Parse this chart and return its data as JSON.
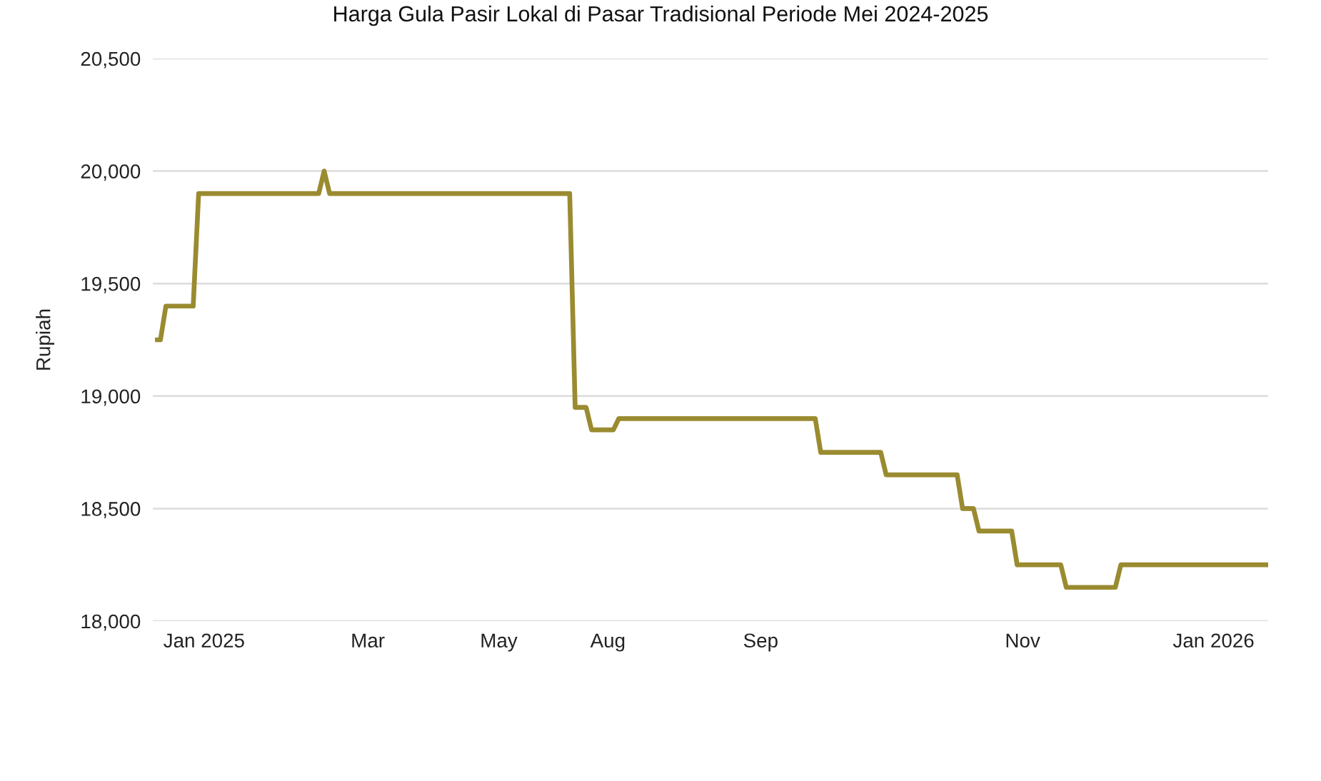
{
  "chart_data": {
    "type": "line",
    "title": "Harga Gula Pasir Lokal di Pasar Tradisional Periode Mei 2024-2025",
    "ylabel": "Rupiah",
    "categories": [
      null,
      null,
      null,
      null,
      null,
      null,
      null,
      null,
      null,
      "Jan 2025",
      null,
      null,
      null,
      null,
      null,
      null,
      null,
      null,
      null,
      null,
      null,
      null,
      null,
      null,
      null,
      null,
      null,
      null,
      null,
      null,
      null,
      null,
      null,
      null,
      null,
      null,
      null,
      null,
      null,
      "Mar",
      null,
      null,
      null,
      null,
      null,
      null,
      null,
      null,
      null,
      null,
      null,
      null,
      null,
      null,
      null,
      null,
      null,
      null,
      null,
      null,
      null,
      null,
      null,
      "May",
      null,
      null,
      null,
      null,
      null,
      null,
      null,
      null,
      null,
      null,
      null,
      null,
      null,
      null,
      null,
      null,
      null,
      null,
      null,
      "Aug",
      null,
      null,
      null,
      null,
      null,
      null,
      null,
      null,
      null,
      null,
      null,
      null,
      null,
      null,
      null,
      null,
      null,
      null,
      null,
      null,
      null,
      null,
      null,
      null,
      null,
      null,
      null,
      "Sep",
      null,
      null,
      null,
      null,
      null,
      null,
      null,
      null,
      null,
      null,
      null,
      null,
      null,
      null,
      null,
      null,
      null,
      null,
      null,
      null,
      null,
      null,
      null,
      null,
      null,
      null,
      null,
      null,
      null,
      null,
      null,
      null,
      null,
      null,
      null,
      null,
      null,
      null,
      null,
      null,
      null,
      null,
      null,
      null,
      null,
      null,
      null,
      "Nov",
      null,
      null,
      null,
      null,
      null,
      null,
      null,
      null,
      null,
      null,
      null,
      null,
      null,
      null,
      null,
      null,
      null,
      null,
      null,
      null,
      null,
      null,
      null,
      null,
      null,
      null,
      null,
      null,
      null,
      null,
      null,
      null,
      null,
      null,
      "Jan 2026",
      null,
      null,
      null,
      null,
      null,
      null,
      null,
      null,
      null,
      null
    ],
    "series": [
      {
        "color": "#9a8b30",
        "values": [
          19250,
          19250,
          19400,
          19400,
          19400,
          19400,
          19400,
          19400,
          19900,
          19900,
          19900,
          19900,
          19900,
          19900,
          19900,
          19900,
          19900,
          19900,
          19900,
          19900,
          19900,
          19900,
          19900,
          19900,
          19900,
          19900,
          19900,
          19900,
          19900,
          19900,
          19900,
          20000,
          19900,
          19900,
          19900,
          19900,
          19900,
          19900,
          19900,
          19900,
          19900,
          19900,
          19900,
          19900,
          19900,
          19900,
          19900,
          19900,
          19900,
          19900,
          19900,
          19900,
          19900,
          19900,
          19900,
          19900,
          19900,
          19900,
          19900,
          19900,
          19900,
          19900,
          19900,
          19900,
          19900,
          19900,
          19900,
          19900,
          19900,
          19900,
          19900,
          19900,
          19900,
          19900,
          19900,
          19900,
          19900,
          18950,
          18950,
          18950,
          18850,
          18850,
          18850,
          18850,
          18850,
          18900,
          18900,
          18900,
          18900,
          18900,
          18900,
          18900,
          18900,
          18900,
          18900,
          18900,
          18900,
          18900,
          18900,
          18900,
          18900,
          18900,
          18900,
          18900,
          18900,
          18900,
          18900,
          18900,
          18900,
          18900,
          18900,
          18900,
          18900,
          18900,
          18900,
          18900,
          18900,
          18900,
          18900,
          18900,
          18900,
          18900,
          18750,
          18750,
          18750,
          18750,
          18750,
          18750,
          18750,
          18750,
          18750,
          18750,
          18750,
          18750,
          18650,
          18650,
          18650,
          18650,
          18650,
          18650,
          18650,
          18650,
          18650,
          18650,
          18650,
          18650,
          18650,
          18650,
          18500,
          18500,
          18500,
          18400,
          18400,
          18400,
          18400,
          18400,
          18400,
          18400,
          18250,
          18250,
          18250,
          18250,
          18250,
          18250,
          18250,
          18250,
          18250,
          18150,
          18150,
          18150,
          18150,
          18150,
          18150,
          18150,
          18150,
          18150,
          18150,
          18250,
          18250,
          18250,
          18250,
          18250,
          18250,
          18250,
          18250,
          18250,
          18250,
          18250,
          18250,
          18250,
          18250,
          18250,
          18250,
          18250,
          18250,
          18250,
          18250,
          18250,
          18250,
          18250,
          18250,
          18250,
          18250,
          18250,
          18250
        ]
      }
    ],
    "ylim": [
      18000,
      20500
    ],
    "yticks": [
      {
        "value": 18000,
        "label": "18,000"
      },
      {
        "value": 18500,
        "label": "18,500"
      },
      {
        "value": 19000,
        "label": "19,000"
      },
      {
        "value": 19500,
        "label": "19,500"
      },
      {
        "value": 20000,
        "label": "20,000"
      },
      {
        "value": 20500,
        "label": "20,500"
      }
    ],
    "grid": "y"
  }
}
